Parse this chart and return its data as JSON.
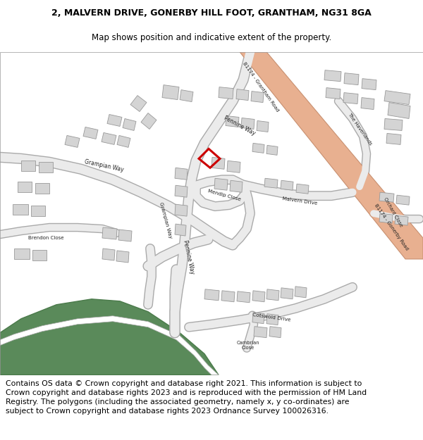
{
  "title_line1": "2, MALVERN DRIVE, GONERBY HILL FOOT, GRANTHAM, NG31 8GA",
  "title_line2": "Map shows position and indicative extent of the property.",
  "footer_text": "Contains OS data © Crown copyright and database right 2021. This information is subject to Crown copyright and database rights 2023 and is reproduced with the permission of HM Land Registry. The polygons (including the associated geometry, namely x, y co-ordinates) are subject to Crown copyright and database rights 2023 Ordnance Survey 100026316.",
  "title_fontsize": 9.0,
  "footer_fontsize": 7.8,
  "bg_color": "#ffffff",
  "road_main_color": "#e8b090",
  "road_main_edge": "#c89070",
  "road_local_color": "#e8e8e8",
  "road_local_edge": "#bbbbbb",
  "building_color": "#d4d4d4",
  "building_edge": "#999999",
  "green_color": "#5a8a5a",
  "green_edge": "#4a7a4a",
  "white_path": "#ffffff",
  "plot_color": "#cc0000",
  "map_bg": "#ffffff"
}
